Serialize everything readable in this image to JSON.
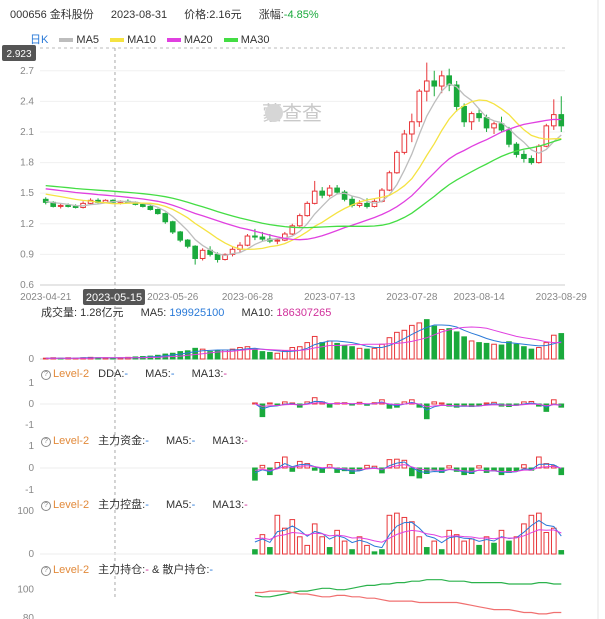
{
  "header": {
    "code_name": "000656 金科股份",
    "date": "2023-08-31",
    "price_label": "价格:",
    "price": "2.16元",
    "change_label": "涨幅:",
    "change": "-4.85%"
  },
  "legend": {
    "period": "日K",
    "items": [
      {
        "name": "MA5",
        "color": "#bdbdbd"
      },
      {
        "name": "MA10",
        "color": "#f5e342"
      },
      {
        "name": "MA20",
        "color": "#e040e0"
      },
      {
        "name": "MA30",
        "color": "#44dd44"
      }
    ]
  },
  "watermark": "蒙查查",
  "cursor": {
    "price": "2.923",
    "date": "2023-05-15"
  },
  "volume_panel": {
    "label": "成交量:",
    "value": "1.28亿元",
    "ma5_label": "MA5:",
    "ma5": "199925100",
    "ma10_label": "MA10:",
    "ma10": "186307265",
    "y_ticks": [
      "0"
    ]
  },
  "dda_panel": {
    "level": "Level-2",
    "label": "DDA:",
    "value": "-",
    "ma5_label": "MA5:",
    "ma5": "-",
    "ma13_label": "MA13:",
    "ma13": "-",
    "y_ticks": [
      "1",
      "0",
      "-1"
    ]
  },
  "zljj_panel": {
    "level": "Level-2",
    "label": "主力资金:",
    "value": "-",
    "ma5_label": "MA5:",
    "ma5": "-",
    "ma13_label": "MA13:",
    "ma13": "-",
    "y_ticks": [
      "1",
      "0",
      "-1"
    ]
  },
  "zlkp_panel": {
    "level": "Level-2",
    "label": "主力控盘:",
    "value": "-",
    "ma5_label": "MA5:",
    "ma5": "-",
    "ma13_label": "MA13:",
    "ma13": "-",
    "y_ticks": [
      "100",
      "0"
    ]
  },
  "zlcc_panel": {
    "level": "Level-2",
    "label": "主力持仓:",
    "value": "-",
    "amp": "&",
    "retail_label": "散户持仓:",
    "retail_value": "-",
    "y_ticks": [
      "100",
      "80"
    ]
  },
  "chart_data": {
    "type": "candlestick",
    "y_ticks": [
      "2.7",
      "2.4",
      "2.1",
      "1.8",
      "1.5",
      "1.2",
      "0.9",
      "0.6"
    ],
    "ylim": [
      0.6,
      2.923
    ],
    "x_ticks": [
      "2023-04-21",
      "2023-05-15",
      "2023-05-26",
      "2023-06-28",
      "2023-07-13",
      "2023-07-28",
      "2023-08-14",
      "2023-08-29"
    ],
    "candles": [
      [
        1.44,
        1.46,
        1.39,
        1.41
      ],
      [
        1.41,
        1.42,
        1.36,
        1.37
      ],
      [
        1.37,
        1.4,
        1.35,
        1.38
      ],
      [
        1.38,
        1.4,
        1.36,
        1.37
      ],
      [
        1.37,
        1.39,
        1.35,
        1.36
      ],
      [
        1.36,
        1.42,
        1.35,
        1.4
      ],
      [
        1.4,
        1.45,
        1.39,
        1.43
      ],
      [
        1.43,
        1.45,
        1.4,
        1.41
      ],
      [
        1.41,
        1.44,
        1.4,
        1.43
      ],
      [
        1.43,
        1.44,
        1.4,
        1.41
      ],
      [
        1.41,
        1.43,
        1.39,
        1.42
      ],
      [
        1.42,
        1.44,
        1.4,
        1.41
      ],
      [
        1.41,
        1.42,
        1.38,
        1.39
      ],
      [
        1.39,
        1.4,
        1.36,
        1.37
      ],
      [
        1.37,
        1.38,
        1.33,
        1.34
      ],
      [
        1.34,
        1.35,
        1.29,
        1.3
      ],
      [
        1.3,
        1.31,
        1.2,
        1.22
      ],
      [
        1.22,
        1.23,
        1.1,
        1.12
      ],
      [
        1.12,
        1.13,
        1.02,
        1.04
      ],
      [
        1.04,
        1.05,
        0.96,
        0.98
      ],
      [
        0.98,
        0.99,
        0.8,
        0.86
      ],
      [
        0.86,
        0.96,
        0.84,
        0.94
      ],
      [
        0.94,
        0.98,
        0.88,
        0.9
      ],
      [
        0.9,
        0.92,
        0.82,
        0.85
      ],
      [
        0.85,
        0.91,
        0.84,
        0.9
      ],
      [
        0.9,
        0.97,
        0.88,
        0.95
      ],
      [
        0.95,
        1.02,
        0.92,
        0.99
      ],
      [
        0.99,
        1.1,
        0.98,
        1.08
      ],
      [
        1.08,
        1.15,
        1.04,
        1.07
      ],
      [
        1.07,
        1.12,
        1.03,
        1.05
      ],
      [
        1.05,
        1.1,
        1.01,
        1.03
      ],
      [
        1.03,
        1.06,
        1.0,
        1.04
      ],
      [
        1.04,
        1.12,
        1.03,
        1.1
      ],
      [
        1.1,
        1.2,
        1.09,
        1.18
      ],
      [
        1.18,
        1.3,
        1.17,
        1.28
      ],
      [
        1.28,
        1.42,
        1.27,
        1.4
      ],
      [
        1.4,
        1.62,
        1.39,
        1.52
      ],
      [
        1.52,
        1.56,
        1.45,
        1.48
      ],
      [
        1.48,
        1.58,
        1.46,
        1.55
      ],
      [
        1.55,
        1.58,
        1.49,
        1.51
      ],
      [
        1.51,
        1.53,
        1.42,
        1.44
      ],
      [
        1.44,
        1.47,
        1.36,
        1.38
      ],
      [
        1.38,
        1.43,
        1.36,
        1.4
      ],
      [
        1.4,
        1.45,
        1.35,
        1.37
      ],
      [
        1.37,
        1.44,
        1.36,
        1.42
      ],
      [
        1.42,
        1.55,
        1.41,
        1.53
      ],
      [
        1.53,
        1.72,
        1.52,
        1.7
      ],
      [
        1.7,
        1.92,
        1.69,
        1.9
      ],
      [
        1.9,
        2.12,
        1.88,
        2.08
      ],
      [
        2.08,
        2.28,
        2.0,
        2.2
      ],
      [
        2.2,
        2.52,
        2.15,
        2.5
      ],
      [
        2.5,
        2.78,
        2.4,
        2.6
      ],
      [
        2.6,
        2.7,
        2.45,
        2.55
      ],
      [
        2.55,
        2.7,
        2.48,
        2.65
      ],
      [
        2.65,
        2.72,
        2.5,
        2.56
      ],
      [
        2.56,
        2.6,
        2.3,
        2.35
      ],
      [
        2.35,
        2.38,
        2.15,
        2.2
      ],
      [
        2.2,
        2.3,
        2.12,
        2.28
      ],
      [
        2.28,
        2.32,
        2.2,
        2.24
      ],
      [
        2.24,
        2.27,
        2.1,
        2.14
      ],
      [
        2.14,
        2.2,
        2.08,
        2.18
      ],
      [
        2.18,
        2.25,
        2.1,
        2.12
      ],
      [
        2.12,
        2.15,
        1.95,
        1.98
      ],
      [
        1.98,
        2.0,
        1.85,
        1.88
      ],
      [
        1.88,
        1.92,
        1.8,
        1.84
      ],
      [
        1.84,
        1.87,
        1.78,
        1.8
      ],
      [
        1.8,
        1.98,
        1.79,
        1.96
      ],
      [
        1.96,
        2.18,
        1.95,
        2.16
      ],
      [
        2.16,
        2.42,
        2.12,
        2.27
      ],
      [
        2.27,
        2.45,
        2.1,
        2.16
      ]
    ],
    "volume": [
      [
        2,
        1
      ],
      [
        3,
        1
      ],
      [
        2,
        0
      ],
      [
        3,
        1
      ],
      [
        2,
        1
      ],
      [
        3,
        1
      ],
      [
        4,
        1
      ],
      [
        3,
        0
      ],
      [
        3,
        1
      ],
      [
        2,
        0
      ],
      [
        3,
        1
      ],
      [
        4,
        1
      ],
      [
        5,
        0
      ],
      [
        6,
        0
      ],
      [
        7,
        0
      ],
      [
        9,
        0
      ],
      [
        12,
        0
      ],
      [
        14,
        0
      ],
      [
        18,
        0
      ],
      [
        20,
        0
      ],
      [
        26,
        0
      ],
      [
        24,
        1
      ],
      [
        18,
        0
      ],
      [
        20,
        0
      ],
      [
        22,
        1
      ],
      [
        24,
        1
      ],
      [
        28,
        1
      ],
      [
        30,
        1
      ],
      [
        24,
        0
      ],
      [
        18,
        0
      ],
      [
        16,
        0
      ],
      [
        14,
        1
      ],
      [
        20,
        1
      ],
      [
        28,
        1
      ],
      [
        30,
        1
      ],
      [
        40,
        1
      ],
      [
        55,
        1
      ],
      [
        40,
        0
      ],
      [
        44,
        1
      ],
      [
        38,
        0
      ],
      [
        32,
        0
      ],
      [
        30,
        0
      ],
      [
        26,
        1
      ],
      [
        24,
        0
      ],
      [
        26,
        1
      ],
      [
        36,
        1
      ],
      [
        52,
        1
      ],
      [
        65,
        1
      ],
      [
        70,
        1
      ],
      [
        82,
        1
      ],
      [
        88,
        1
      ],
      [
        96,
        0
      ],
      [
        80,
        0
      ],
      [
        72,
        1
      ],
      [
        74,
        0
      ],
      [
        66,
        0
      ],
      [
        54,
        0
      ],
      [
        44,
        1
      ],
      [
        40,
        0
      ],
      [
        38,
        0
      ],
      [
        36,
        1
      ],
      [
        34,
        0
      ],
      [
        42,
        0
      ],
      [
        36,
        0
      ],
      [
        30,
        0
      ],
      [
        24,
        0
      ],
      [
        28,
        1
      ],
      [
        40,
        1
      ],
      [
        58,
        1
      ],
      [
        62,
        0
      ]
    ],
    "vol_ma5": [
      2,
      2,
      2,
      2,
      2,
      3,
      3,
      3,
      3,
      3,
      3,
      3,
      3,
      4,
      5,
      6,
      8,
      10,
      12,
      15,
      18,
      20,
      21,
      22,
      22,
      22,
      23,
      25,
      26,
      24,
      22,
      20,
      18,
      19,
      21,
      26,
      35,
      40,
      44,
      44,
      42,
      40,
      36,
      31,
      28,
      28,
      33,
      41,
      50,
      60,
      69,
      77,
      83,
      83,
      82,
      78,
      70,
      63,
      57,
      50,
      45,
      41,
      40,
      38,
      36,
      34,
      32,
      33,
      37,
      43
    ],
    "vol_ma10": [
      2,
      2,
      2,
      2,
      2,
      2,
      2,
      3,
      3,
      3,
      3,
      3,
      3,
      3,
      4,
      4,
      5,
      6,
      7,
      9,
      11,
      13,
      15,
      17,
      18,
      19,
      21,
      23,
      24,
      24,
      23,
      22,
      21,
      21,
      21,
      23,
      27,
      30,
      33,
      33,
      34,
      35,
      35,
      36,
      36,
      36,
      37,
      38,
      40,
      43,
      47,
      52,
      59,
      66,
      71,
      75,
      77,
      78,
      77,
      75,
      70,
      65,
      60,
      55,
      52,
      49,
      46,
      42,
      40,
      40
    ],
    "dda": [
      [
        0,
        1,
        0.05
      ],
      [
        1,
        0,
        -0.6
      ],
      [
        2,
        1,
        0.05
      ],
      [
        3,
        0,
        -0.05
      ],
      [
        4,
        1,
        0.1
      ],
      [
        5,
        1,
        0.05
      ],
      [
        6,
        0,
        -0.15
      ],
      [
        7,
        1,
        0.1
      ],
      [
        8,
        1,
        0.3
      ],
      [
        9,
        1,
        0.1
      ],
      [
        10,
        0,
        -0.15
      ],
      [
        11,
        1,
        0.05
      ],
      [
        12,
        1,
        0.06
      ],
      [
        13,
        0,
        -0.05
      ],
      [
        14,
        1,
        0.08
      ],
      [
        15,
        0,
        -0.06
      ],
      [
        16,
        1,
        0.06
      ],
      [
        17,
        1,
        0.2
      ],
      [
        18,
        0,
        -0.2
      ],
      [
        19,
        0,
        -0.15
      ],
      [
        20,
        1,
        0.1
      ],
      [
        21,
        1,
        0.2
      ],
      [
        22,
        0,
        -0.15
      ],
      [
        23,
        0,
        -0.7
      ],
      [
        24,
        1,
        0.1
      ],
      [
        25,
        1,
        0.05
      ],
      [
        26,
        0,
        -0.1
      ],
      [
        27,
        0,
        -0.15
      ],
      [
        28,
        0,
        -0.1
      ],
      [
        29,
        0,
        -0.12
      ],
      [
        30,
        0,
        -0.08
      ],
      [
        31,
        1,
        0.05
      ],
      [
        32,
        1,
        0.08
      ],
      [
        33,
        0,
        -0.1
      ],
      [
        34,
        0,
        -0.12
      ],
      [
        35,
        0,
        -0.06
      ],
      [
        36,
        1,
        0.1
      ],
      [
        37,
        1,
        0.12
      ],
      [
        38,
        0,
        -0.1
      ],
      [
        39,
        0,
        -0.35
      ],
      [
        40,
        1,
        0.2
      ],
      [
        41,
        0,
        -0.15
      ]
    ],
    "dda_start": 30,
    "zljj": [
      [
        0,
        0,
        -0.55
      ],
      [
        1,
        1,
        0.12
      ],
      [
        2,
        0,
        -0.3
      ],
      [
        3,
        1,
        0.25
      ],
      [
        4,
        1,
        0.5
      ],
      [
        5,
        0,
        -0.15
      ],
      [
        6,
        1,
        0.3
      ],
      [
        7,
        1,
        0.2
      ],
      [
        8,
        0,
        -0.1
      ],
      [
        9,
        0,
        -0.2
      ],
      [
        10,
        1,
        0.15
      ],
      [
        11,
        0,
        -0.2
      ],
      [
        12,
        0,
        -0.12
      ],
      [
        13,
        0,
        -0.25
      ],
      [
        14,
        0,
        -0.1
      ],
      [
        15,
        1,
        0.12
      ],
      [
        16,
        1,
        0.08
      ],
      [
        17,
        0,
        -0.22
      ],
      [
        18,
        1,
        0.38
      ],
      [
        19,
        1,
        0.4
      ],
      [
        20,
        1,
        0.35
      ],
      [
        21,
        0,
        -0.35
      ],
      [
        22,
        0,
        -0.45
      ],
      [
        23,
        0,
        -0.25
      ],
      [
        24,
        0,
        -0.1
      ],
      [
        25,
        0,
        -0.2
      ],
      [
        26,
        1,
        0.1
      ],
      [
        27,
        0,
        -0.15
      ],
      [
        28,
        0,
        -0.3
      ],
      [
        29,
        0,
        -0.25
      ],
      [
        30,
        1,
        0.1
      ],
      [
        31,
        0,
        -0.2
      ],
      [
        32,
        0,
        -0.12
      ],
      [
        33,
        0,
        -0.3
      ],
      [
        34,
        0,
        -0.2
      ],
      [
        35,
        0,
        -0.12
      ],
      [
        36,
        1,
        0.15
      ],
      [
        37,
        0,
        -0.1
      ],
      [
        38,
        1,
        0.5
      ],
      [
        39,
        1,
        0.2
      ],
      [
        40,
        1,
        0.1
      ],
      [
        41,
        0,
        -0.3
      ]
    ],
    "zlkp": [
      [
        0,
        0,
        10
      ],
      [
        1,
        1,
        45
      ],
      [
        2,
        0,
        15
      ],
      [
        3,
        1,
        90
      ],
      [
        4,
        1,
        60
      ],
      [
        5,
        1,
        80
      ],
      [
        6,
        1,
        40
      ],
      [
        7,
        1,
        20
      ],
      [
        8,
        1,
        70
      ],
      [
        9,
        1,
        40
      ],
      [
        10,
        0,
        15
      ],
      [
        11,
        1,
        55
      ],
      [
        12,
        1,
        30
      ],
      [
        13,
        0,
        10
      ],
      [
        14,
        1,
        40
      ],
      [
        15,
        1,
        20
      ],
      [
        16,
        0,
        5
      ],
      [
        17,
        0,
        10
      ],
      [
        18,
        1,
        90
      ],
      [
        19,
        1,
        95
      ],
      [
        20,
        1,
        85
      ],
      [
        21,
        1,
        75
      ],
      [
        22,
        1,
        40
      ],
      [
        23,
        0,
        15
      ],
      [
        24,
        1,
        30
      ],
      [
        25,
        0,
        10
      ],
      [
        26,
        1,
        55
      ],
      [
        27,
        1,
        45
      ],
      [
        28,
        1,
        30
      ],
      [
        29,
        1,
        35
      ],
      [
        30,
        0,
        20
      ],
      [
        31,
        1,
        40
      ],
      [
        32,
        0,
        25
      ],
      [
        33,
        1,
        55
      ],
      [
        34,
        0,
        30
      ],
      [
        35,
        1,
        40
      ],
      [
        36,
        1,
        70
      ],
      [
        37,
        1,
        90
      ],
      [
        38,
        1,
        95
      ],
      [
        39,
        1,
        50
      ],
      [
        40,
        1,
        60
      ],
      [
        41,
        0,
        8
      ]
    ],
    "zlcc_main": [
      96,
      95,
      95,
      96,
      97,
      98,
      99,
      99,
      100,
      101,
      101,
      100,
      100,
      101,
      102,
      103,
      103,
      104,
      104,
      105,
      105,
      106,
      106,
      107,
      107,
      107,
      106,
      106,
      106,
      105,
      105,
      105,
      105,
      105,
      104,
      104,
      104,
      104,
      105,
      105,
      104,
      104
    ],
    "zlcc_retail": [
      98,
      98,
      99,
      99,
      99,
      98,
      97,
      97,
      96,
      95,
      95,
      96,
      96,
      95,
      95,
      94,
      94,
      93,
      92,
      92,
      92,
      92,
      91,
      91,
      91,
      91,
      91,
      91,
      90,
      89,
      88,
      87,
      86,
      86,
      86,
      85,
      84,
      84,
      83,
      83,
      84,
      84
    ]
  }
}
